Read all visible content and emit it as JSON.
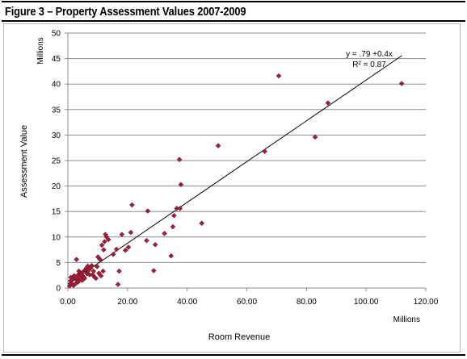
{
  "figure": {
    "title": "Figure 3 – Property Assessment Values 2007-2009"
  },
  "chart_data": {
    "type": "scatter",
    "xlabel": "Room Revenue",
    "ylabel": "Assessment Value",
    "x_unit_label": "Millions",
    "y_unit_label": "Millions",
    "xlim": [
      0,
      120
    ],
    "ylim": [
      0,
      50
    ],
    "x_ticks": [
      "0.00",
      "20.00",
      "40.00",
      "60.00",
      "80.00",
      "100.00",
      "120.00"
    ],
    "y_ticks": [
      "0",
      "5",
      "10",
      "15",
      "20",
      "25",
      "30",
      "35",
      "40",
      "45",
      "50"
    ],
    "grid": "horizontal",
    "marker_color": "#a0203a",
    "trendline": {
      "equation": "y = .79 +0.4x",
      "r_squared": "R² = 0.87",
      "intercept": 0.79,
      "slope": 0.4,
      "x_range": [
        0,
        112
      ]
    },
    "points": [
      [
        0.6,
        0.4
      ],
      [
        0.9,
        1.4
      ],
      [
        1.0,
        2.1
      ],
      [
        1.3,
        0.8
      ],
      [
        1.6,
        1.6
      ],
      [
        1.9,
        0.5
      ],
      [
        2.1,
        2.4
      ],
      [
        2.4,
        1.9
      ],
      [
        2.7,
        0.9
      ],
      [
        2.9,
        5.6
      ],
      [
        3.1,
        1.6
      ],
      [
        3.3,
        2.5
      ],
      [
        3.5,
        1.2
      ],
      [
        3.7,
        3.3
      ],
      [
        3.9,
        2.0
      ],
      [
        4.2,
        2.9
      ],
      [
        4.5,
        2.6
      ],
      [
        4.8,
        1.5
      ],
      [
        5.0,
        3.1
      ],
      [
        5.3,
        2.2
      ],
      [
        5.6,
        1.9
      ],
      [
        5.9,
        3.6
      ],
      [
        6.2,
        3.9
      ],
      [
        6.4,
        2.8
      ],
      [
        6.7,
        4.3
      ],
      [
        7.0,
        3.5
      ],
      [
        7.3,
        2.6
      ],
      [
        7.6,
        3.9
      ],
      [
        8.0,
        4.4
      ],
      [
        8.3,
        2.6
      ],
      [
        8.6,
        3.3
      ],
      [
        9.0,
        2.1
      ],
      [
        9.4,
        1.9
      ],
      [
        9.8,
        4.2
      ],
      [
        10.1,
        6.1
      ],
      [
        10.4,
        2.9
      ],
      [
        10.8,
        5.6
      ],
      [
        11.1,
        2.4
      ],
      [
        11.4,
        8.4
      ],
      [
        11.8,
        3.3
      ],
      [
        12.0,
        7.5
      ],
      [
        12.3,
        9.1
      ],
      [
        12.6,
        10.5
      ],
      [
        13.0,
        10.0
      ],
      [
        13.6,
        9.5
      ],
      [
        15.2,
        6.6
      ],
      [
        16.3,
        7.6
      ],
      [
        16.8,
        0.7
      ],
      [
        17.2,
        3.3
      ],
      [
        18.1,
        10.5
      ],
      [
        19.3,
        7.4
      ],
      [
        20.3,
        8.0
      ],
      [
        21.1,
        10.9
      ],
      [
        21.5,
        16.3
      ],
      [
        26.4,
        9.3
      ],
      [
        26.8,
        15.1
      ],
      [
        28.8,
        3.4
      ],
      [
        29.3,
        8.5
      ],
      [
        32.4,
        10.7
      ],
      [
        34.6,
        6.3
      ],
      [
        35.2,
        12.0
      ],
      [
        35.6,
        14.2
      ],
      [
        36.5,
        15.6
      ],
      [
        37.4,
        25.2
      ],
      [
        37.6,
        15.6
      ],
      [
        37.9,
        20.3
      ],
      [
        44.9,
        12.7
      ],
      [
        50.4,
        27.9
      ],
      [
        66.0,
        26.8
      ],
      [
        70.7,
        41.6
      ],
      [
        82.9,
        29.6
      ],
      [
        87.2,
        36.3
      ],
      [
        111.9,
        40.1
      ]
    ]
  }
}
